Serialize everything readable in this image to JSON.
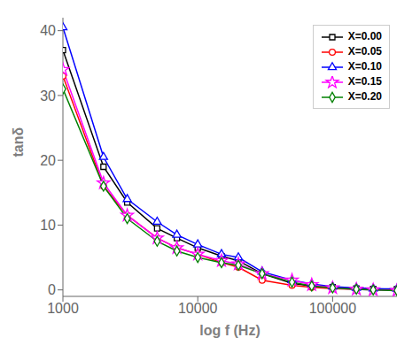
{
  "chart_data": {
    "type": "line",
    "xlabel": "log f (Hz)",
    "ylabel": "tanδ",
    "log": "x",
    "x": [
      1000,
      2000,
      3000,
      5000,
      7000,
      10000,
      15000,
      20000,
      30000,
      50000,
      70000,
      100000,
      150000,
      200000,
      300000
    ],
    "xlim": [
      1000,
      300000
    ],
    "xticks": [
      1000,
      10000,
      100000
    ],
    "ylim": [
      -1,
      42
    ],
    "yticks": [
      0,
      10,
      20,
      30,
      40
    ],
    "legend": "upper right",
    "series": [
      {
        "name": "X=0.00",
        "color": "black",
        "marker": "square",
        "values": [
          37.0,
          19.0,
          13.5,
          9.5,
          8.0,
          6.5,
          5.2,
          4.5,
          2.5,
          1.0,
          0.6,
          0.4,
          0.2,
          0.15,
          0.1
        ]
      },
      {
        "name": "X=0.05",
        "color": "red",
        "marker": "circle",
        "values": [
          33.0,
          16.0,
          11.5,
          8.0,
          6.5,
          5.5,
          4.2,
          3.5,
          1.5,
          0.7,
          0.4,
          0.2,
          0.1,
          0.05,
          0.02
        ]
      },
      {
        "name": "X=0.10",
        "color": "blue",
        "marker": "triangle",
        "values": [
          40.5,
          20.5,
          14.0,
          10.5,
          8.5,
          7.0,
          5.5,
          5.0,
          2.8,
          1.5,
          0.9,
          0.5,
          0.3,
          0.2,
          0.15
        ]
      },
      {
        "name": "X=0.15",
        "color": "magenta",
        "marker": "star",
        "values": [
          34.0,
          16.5,
          11.5,
          8.0,
          6.5,
          5.5,
          4.5,
          4.0,
          2.5,
          1.5,
          0.8,
          0.3,
          0.1,
          0.0,
          -0.1
        ]
      },
      {
        "name": "X=0.20",
        "color": "green",
        "marker": "diamond",
        "values": [
          31.0,
          16.0,
          11.0,
          7.5,
          6.0,
          5.0,
          4.2,
          3.8,
          2.5,
          1.2,
          0.6,
          0.3,
          0.1,
          0.0,
          -0.1
        ]
      }
    ]
  }
}
